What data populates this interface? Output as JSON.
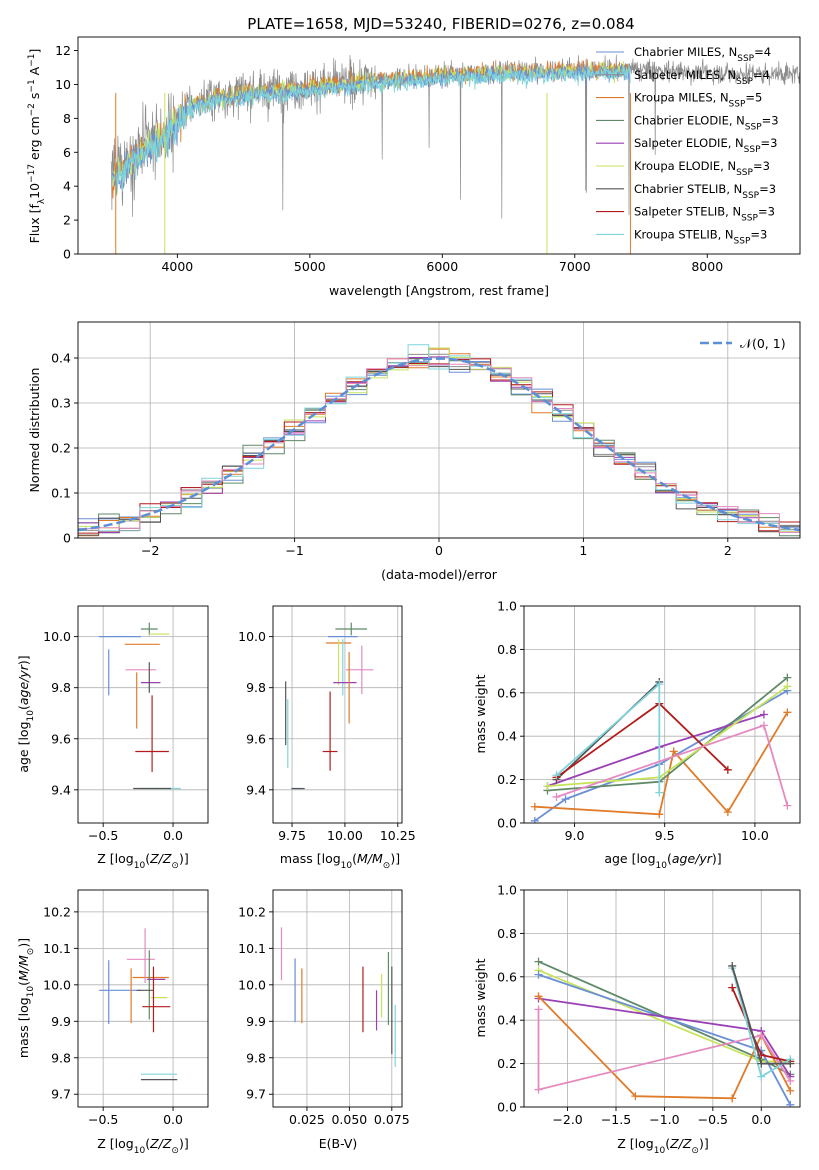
{
  "title": "PLATE=1658, MJD=53240, FIBERID=0276, z=0.084",
  "colors": {
    "chabrier_miles": "#6a8fd6",
    "salpeter_miles": "#8c8c8c",
    "kroupa_miles": "#e07b2a",
    "chabrier_elodie": "#5f8a68",
    "salpeter_elodie": "#9b3fb5",
    "kroupa_elodie": "#c6e35c",
    "chabrier_stelib": "#555555",
    "salpeter_stelib": "#b31c1c",
    "kroupa_stelib": "#7fd4dc",
    "pink": "#e58ac0",
    "normal_curve": "#5b8fd6",
    "grid": "#b0b0b0"
  },
  "chart_data": [
    {
      "type": "line",
      "title": "PLATE=1658, MJD=53240, FIBERID=0276, z=0.084",
      "xlabel": "wavelength [Angstrom, rest frame]",
      "ylabel": "Flux [f_λ10^-17 erg cm^-2 s^-1 A^-1]",
      "xlim": [
        3250,
        8700
      ],
      "ylim": [
        0,
        12.8
      ],
      "xticks": [
        4000,
        5000,
        6000,
        7000,
        8000
      ],
      "yticks": [
        0,
        2,
        4,
        6,
        8,
        10,
        12
      ],
      "grid": false,
      "legend_position": "right",
      "legend": [
        "Chabrier MILES, N_SSP=4",
        "Salpeter MILES, N_SSP=4",
        "Kroupa MILES, N_SSP=5",
        "Chabrier ELODIE, N_SSP=3",
        "Salpeter ELODIE, N_SSP=3",
        "Kroupa ELODIE, N_SSP=3",
        "Chabrier STELIB, N_SSP=3",
        "Salpeter STELIB, N_SSP=3",
        "Kroupa STELIB, N_SSP=3"
      ],
      "spectrum_envelope": {
        "x": [
          3500,
          3700,
          3900,
          4100,
          4300,
          4600,
          5000,
          5500,
          6000,
          6500,
          7000,
          7400,
          8000,
          8700
        ],
        "y": [
          4.5,
          6.0,
          7.0,
          8.8,
          9.3,
          9.6,
          9.9,
          10.3,
          10.6,
          10.8,
          10.9,
          10.9,
          10.7,
          10.6
        ]
      },
      "model_extent": [
        3500,
        7420
      ]
    },
    {
      "type": "line",
      "xlabel": "(data-model)/error",
      "ylabel": "Normed distribution",
      "xlim": [
        -2.5,
        2.5
      ],
      "ylim": [
        0,
        0.48
      ],
      "xticks": [
        -2,
        -1,
        0,
        1,
        2
      ],
      "yticks": [
        0.0,
        0.1,
        0.2,
        0.3,
        0.4
      ],
      "grid": true,
      "legend_position": "top-right",
      "legend": [
        "𝒩(0, 1)"
      ]
    },
    {
      "type": "scatter",
      "xlabel": "Z [log10(Z/Z⊙)]",
      "ylabel": "age  [log10(age/yr)]",
      "xlim": [
        -0.68,
        0.25
      ],
      "ylim": [
        9.27,
        10.12
      ],
      "xticks": [
        -0.5,
        0.0
      ],
      "yticks": [
        9.4,
        9.6,
        9.8,
        10.0
      ],
      "grid": true,
      "points": [
        {
          "series": "chabrier_miles",
          "x": -0.46,
          "y": 9.86,
          "xerr": 0.0,
          "yerr": 0.18
        },
        {
          "series": "chabrier_miles",
          "x": -0.38,
          "y": 10.0,
          "xerr": 0.3,
          "yerr": 0.0
        },
        {
          "series": "kroupa_miles",
          "x": -0.26,
          "y": 9.75,
          "xerr": 0.0,
          "yerr": 0.22
        },
        {
          "series": "kroupa_miles",
          "x": -0.22,
          "y": 9.97,
          "xerr": 0.25,
          "yerr": 0.0
        },
        {
          "series": "chabrier_elodie",
          "x": -0.17,
          "y": 10.03,
          "xerr": 0.12,
          "yerr": 0.05
        },
        {
          "series": "kroupa_elodie",
          "x": -0.1,
          "y": 10.01,
          "xerr": 0.15,
          "yerr": 0.0
        },
        {
          "series": "pink",
          "x": -0.23,
          "y": 9.87,
          "xerr": 0.22,
          "yerr": 0.0
        },
        {
          "series": "salpeter_elodie",
          "x": -0.16,
          "y": 9.82,
          "xerr": 0.14,
          "yerr": 0.0
        },
        {
          "series": "chabrier_stelib",
          "x": -0.17,
          "y": 9.84,
          "xerr": 0.0,
          "yerr": 0.12
        },
        {
          "series": "salpeter_stelib",
          "x": -0.15,
          "y": 9.55,
          "xerr": 0.24,
          "yerr": 0.0
        },
        {
          "series": "salpeter_stelib",
          "x": -0.15,
          "y": 9.62,
          "xerr": 0.0,
          "yerr": 0.3
        },
        {
          "series": "kroupa_stelib",
          "x": -0.09,
          "y": 9.405,
          "xerr": 0.29,
          "yerr": 0.0
        },
        {
          "series": "chabrier_stelib",
          "x": -0.15,
          "y": 9.405,
          "xerr": 0.27,
          "yerr": 0.0
        }
      ]
    },
    {
      "type": "scatter",
      "xlabel": "mass [log10(M/M⊙)]",
      "xlim": [
        9.66,
        10.27
      ],
      "ylim": [
        9.27,
        10.12
      ],
      "xticks": [
        9.75,
        10.0,
        10.25
      ],
      "yticks": [
        9.4,
        9.6,
        9.8,
        10.0
      ],
      "grid": true,
      "points": [
        {
          "series": "chabrier_stelib",
          "x": 9.72,
          "y": 9.7,
          "xerr": 0.0,
          "yerr": 0.25
        },
        {
          "series": "kroupa_stelib",
          "x": 9.73,
          "y": 9.62,
          "xerr": 0.0,
          "yerr": 0.27
        },
        {
          "series": "chabrier_miles",
          "x": 9.77,
          "y": 9.405,
          "xerr": 0.05,
          "yerr": 0.0
        },
        {
          "series": "chabrier_stelib",
          "x": 9.78,
          "y": 9.405,
          "xerr": 0.06,
          "yerr": 0.0
        },
        {
          "series": "salpeter_stelib",
          "x": 9.93,
          "y": 9.55,
          "xerr": 0.07,
          "yerr": 0.0
        },
        {
          "series": "salpeter_stelib",
          "x": 9.93,
          "y": 9.63,
          "xerr": 0.0,
          "yerr": 0.31
        },
        {
          "series": "chabrier_elodie",
          "x": 10.03,
          "y": 10.03,
          "xerr": 0.15,
          "yerr": 0.05
        },
        {
          "series": "chabrier_miles",
          "x": 9.99,
          "y": 10.0,
          "xerr": 0.14,
          "yerr": 0.0
        },
        {
          "series": "kroupa_miles",
          "x": 9.97,
          "y": 9.975,
          "xerr": 0.12,
          "yerr": 0.0
        },
        {
          "series": "kroupa_elodie",
          "x": 9.97,
          "y": 9.9,
          "xerr": 0.0,
          "yerr": 0.18
        },
        {
          "series": "kroupa_stelib",
          "x": 9.99,
          "y": 9.88,
          "xerr": 0.0,
          "yerr": 0.22
        },
        {
          "series": "salpeter_elodie",
          "x": 10.0,
          "y": 9.82,
          "xerr": 0.11,
          "yerr": 0.0
        },
        {
          "series": "pink",
          "x": 10.07,
          "y": 9.87,
          "xerr": 0.13,
          "yerr": 0.0
        },
        {
          "series": "pink",
          "x": 10.08,
          "y": 9.87,
          "xerr": 0.0,
          "yerr": 0.19
        },
        {
          "series": "kroupa_miles",
          "x": 10.02,
          "y": 9.8,
          "xerr": 0.0,
          "yerr": 0.28
        }
      ]
    },
    {
      "type": "line",
      "xlabel": "age  [log10(age/yr)]",
      "ylabel": "mass weight",
      "xlim": [
        8.72,
        10.25
      ],
      "ylim": [
        0,
        1.0
      ],
      "xticks": [
        9.0,
        9.5,
        10.0
      ],
      "yticks": [
        0.0,
        0.2,
        0.4,
        0.6,
        0.8,
        1.0
      ],
      "grid": true,
      "series": [
        {
          "key": "chabrier_miles",
          "x": [
            8.78,
            8.95,
            9.47,
            10.18
          ],
          "y": [
            0.01,
            0.11,
            0.27,
            0.61
          ]
        },
        {
          "key": "kroupa_miles",
          "x": [
            8.78,
            9.47,
            9.55,
            9.85,
            10.18
          ],
          "y": [
            0.075,
            0.04,
            0.33,
            0.05,
            0.51
          ]
        },
        {
          "key": "chabrier_elodie",
          "x": [
            8.85,
            9.47,
            10.18
          ],
          "y": [
            0.15,
            0.19,
            0.67
          ]
        },
        {
          "key": "salpeter_elodie",
          "x": [
            8.85,
            9.47,
            10.05
          ],
          "y": [
            0.17,
            0.35,
            0.5
          ]
        },
        {
          "key": "kroupa_elodie",
          "x": [
            8.85,
            9.47,
            10.18
          ],
          "y": [
            0.17,
            0.21,
            0.63
          ]
        },
        {
          "key": "chabrier_stelib",
          "x": [
            8.9,
            9.47
          ],
          "y": [
            0.2,
            0.65
          ]
        },
        {
          "key": "salpeter_stelib",
          "x": [
            8.9,
            9.47,
            9.85
          ],
          "y": [
            0.21,
            0.55,
            0.245
          ]
        },
        {
          "key": "kroupa_stelib",
          "x": [
            8.9,
            9.47,
            9.47
          ],
          "y": [
            0.22,
            0.64,
            0.14
          ]
        },
        {
          "key": "pink",
          "x": [
            8.9,
            10.05,
            10.18
          ],
          "y": [
            0.12,
            0.45,
            0.08
          ]
        }
      ]
    },
    {
      "type": "scatter",
      "xlabel": "Z [log10(Z/Z⊙)]",
      "ylabel": "mass [log10(M/M⊙)]",
      "xlim": [
        -0.68,
        0.25
      ],
      "ylim": [
        9.665,
        10.26
      ],
      "xticks": [
        -0.5,
        0.0
      ],
      "yticks": [
        9.7,
        9.8,
        9.9,
        10.0,
        10.1,
        10.2
      ],
      "grid": true,
      "points": [
        {
          "series": "chabrier_miles",
          "x": -0.46,
          "y": 9.98,
          "xerr": 0.0,
          "yerr": 0.175
        },
        {
          "series": "chabrier_miles",
          "x": -0.38,
          "y": 9.985,
          "xerr": 0.3,
          "yerr": 0.0
        },
        {
          "series": "kroupa_miles",
          "x": -0.3,
          "y": 9.97,
          "xerr": 0.0,
          "yerr": 0.15
        },
        {
          "series": "kroupa_miles",
          "x": -0.16,
          "y": 10.02,
          "xerr": 0.26,
          "yerr": 0.0
        },
        {
          "series": "pink",
          "x": -0.23,
          "y": 10.07,
          "xerr": 0.2,
          "yerr": 0.0
        },
        {
          "series": "pink",
          "x": -0.2,
          "y": 10.08,
          "xerr": 0.0,
          "yerr": 0.15
        },
        {
          "series": "chabrier_elodie",
          "x": -0.17,
          "y": 10.0,
          "xerr": 0.0,
          "yerr": 0.19
        },
        {
          "series": "salpeter_elodie",
          "x": -0.12,
          "y": 10.015,
          "xerr": 0.13,
          "yerr": 0.0
        },
        {
          "series": "kroupa_elodie",
          "x": -0.1,
          "y": 9.965,
          "xerr": 0.12,
          "yerr": 0.0
        },
        {
          "series": "chabrier_stelib",
          "x": -0.2,
          "y": 9.985,
          "xerr": 0.12,
          "yerr": 0.0
        },
        {
          "series": "salpeter_stelib",
          "x": -0.12,
          "y": 9.94,
          "xerr": 0.2,
          "yerr": 0.0
        },
        {
          "series": "salpeter_stelib",
          "x": -0.14,
          "y": 9.96,
          "xerr": 0.0,
          "yerr": 0.18
        },
        {
          "series": "kroupa_stelib",
          "x": -0.1,
          "y": 9.755,
          "xerr": 0.26,
          "yerr": 0.0
        },
        {
          "series": "chabrier_stelib",
          "x": -0.1,
          "y": 9.74,
          "xerr": 0.26,
          "yerr": 0.0
        }
      ]
    },
    {
      "type": "scatter",
      "xlabel": "E(B-V)",
      "xlim": [
        0.005,
        0.081
      ],
      "ylim": [
        9.665,
        10.26
      ],
      "xticks": [
        0.025,
        0.05,
        0.075
      ],
      "yticks": [
        9.7,
        9.8,
        9.9,
        10.0,
        10.1,
        10.2
      ],
      "grid": true,
      "points": [
        {
          "series": "pink",
          "x": 0.01,
          "y": 10.085,
          "xerr": 0.0,
          "yerr": 0.145
        },
        {
          "series": "chabrier_miles",
          "x": 0.018,
          "y": 9.985,
          "xerr": 0.0,
          "yerr": 0.175
        },
        {
          "series": "kroupa_miles",
          "x": 0.022,
          "y": 9.97,
          "xerr": 0.0,
          "yerr": 0.15
        },
        {
          "series": "salpeter_stelib",
          "x": 0.058,
          "y": 9.96,
          "xerr": 0.0,
          "yerr": 0.18
        },
        {
          "series": "salpeter_elodie",
          "x": 0.066,
          "y": 9.93,
          "xerr": 0.0,
          "yerr": 0.11
        },
        {
          "series": "kroupa_elodie",
          "x": 0.069,
          "y": 9.97,
          "xerr": 0.0,
          "yerr": 0.12
        },
        {
          "series": "chabrier_elodie",
          "x": 0.073,
          "y": 9.99,
          "xerr": 0.0,
          "yerr": 0.2
        },
        {
          "series": "chabrier_stelib",
          "x": 0.075,
          "y": 9.93,
          "xerr": 0.0,
          "yerr": 0.24
        },
        {
          "series": "kroupa_stelib",
          "x": 0.077,
          "y": 9.86,
          "xerr": 0.0,
          "yerr": 0.17
        }
      ]
    },
    {
      "type": "line",
      "xlabel": "Z [log10(Z/Z⊙)]",
      "ylabel": "mass weight",
      "xlim": [
        -2.45,
        0.4
      ],
      "ylim": [
        0,
        1.0
      ],
      "xticks": [
        -2.0,
        -1.5,
        -1.0,
        -0.5,
        0.0
      ],
      "yticks": [
        0.0,
        0.2,
        0.4,
        0.6,
        0.8,
        1.0
      ],
      "grid": true,
      "series": [
        {
          "key": "chabrier_elodie",
          "x": [
            -2.3,
            0.0,
            0.3
          ],
          "y": [
            0.67,
            0.22,
            0.15
          ]
        },
        {
          "key": "kroupa_elodie",
          "x": [
            -2.3,
            0.0,
            0.3
          ],
          "y": [
            0.63,
            0.21,
            0.21
          ]
        },
        {
          "key": "chabrier_miles",
          "x": [
            -2.3,
            0.0,
            0.3
          ],
          "y": [
            0.61,
            0.26,
            0.01
          ]
        },
        {
          "key": "salpeter_elodie",
          "x": [
            -2.3,
            0.0,
            0.3
          ],
          "y": [
            0.5,
            0.35,
            0.14
          ]
        },
        {
          "key": "kroupa_miles",
          "x": [
            -2.3,
            -1.3,
            -0.3,
            0.0,
            0.3
          ],
          "y": [
            0.51,
            0.05,
            0.04,
            0.33,
            0.075
          ]
        },
        {
          "key": "pink",
          "x": [
            -2.3,
            -2.3,
            0.0,
            0.3
          ],
          "y": [
            0.45,
            0.08,
            0.33,
            0.12
          ]
        },
        {
          "key": "salpeter_stelib",
          "x": [
            -0.3,
            0.0,
            0.3
          ],
          "y": [
            0.55,
            0.24,
            0.21
          ]
        },
        {
          "key": "kroupa_stelib",
          "x": [
            -0.3,
            0.0,
            0.3
          ],
          "y": [
            0.64,
            0.14,
            0.22
          ]
        },
        {
          "key": "chabrier_stelib",
          "x": [
            -0.3,
            0.0,
            0.3
          ],
          "y": [
            0.65,
            0.2,
            0.2
          ]
        }
      ]
    }
  ],
  "labels": {
    "spec_xlabel": "wavelength [Angstrom, rest frame]",
    "hist_xlabel": "(data-model)/error",
    "hist_ylabel": "Normed distribution",
    "normal_label": "𝒩(0, 1)",
    "age_label": "age",
    "mass_label": "mass",
    "mass_weight": "mass weight",
    "ebv": "E(B-V)",
    "z_label": "Z"
  }
}
